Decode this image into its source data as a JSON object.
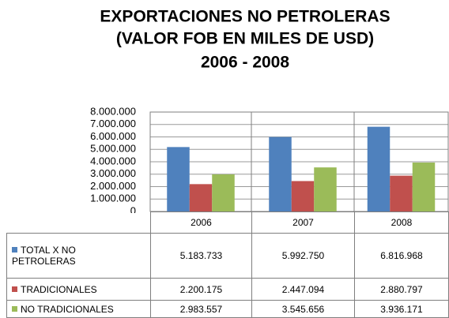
{
  "chart_data": {
    "type": "bar",
    "title": [
      "EXPORTACIONES NO PETROLERAS",
      "(VALOR FOB EN MILES DE USD)",
      "2006 - 2008"
    ],
    "categories": [
      "2006",
      "2007",
      "2008"
    ],
    "series": [
      {
        "name": "TOTAL X NO PETROLERAS",
        "color": "#4f81bd",
        "values": [
          5183733,
          5992750,
          6816968
        ],
        "value_labels": [
          "5.183.733",
          "5.992.750",
          "6.816.968"
        ]
      },
      {
        "name": "TRADICIONALES",
        "color": "#c0504d",
        "values": [
          2200175,
          2447094,
          2880797
        ],
        "value_labels": [
          "2.200.175",
          "2.447.094",
          "2.880.797"
        ]
      },
      {
        "name": "NO TRADICIONALES",
        "color": "#9bbb59",
        "values": [
          2983557,
          3545656,
          3936171
        ],
        "value_labels": [
          "2.983.557",
          "3.545.656",
          "3.936.171"
        ]
      }
    ],
    "ylim": [
      0,
      8000000
    ],
    "yticks": [
      0,
      {
        "value": 1000000,
        "label": "1.000.000"
      },
      {
        "value": 2000000,
        "label": "2.000.000"
      },
      {
        "value": 3000000,
        "label": "3.000.000"
      },
      {
        "value": 4000000,
        "label": "4.000.000"
      },
      {
        "value": 5000000,
        "label": "5.000.000"
      },
      {
        "value": 6000000,
        "label": "6.000.000"
      },
      {
        "value": 7000000,
        "label": "7.000.000"
      },
      {
        "value": 8000000,
        "label": "8.000.000"
      }
    ],
    "grid": true
  }
}
